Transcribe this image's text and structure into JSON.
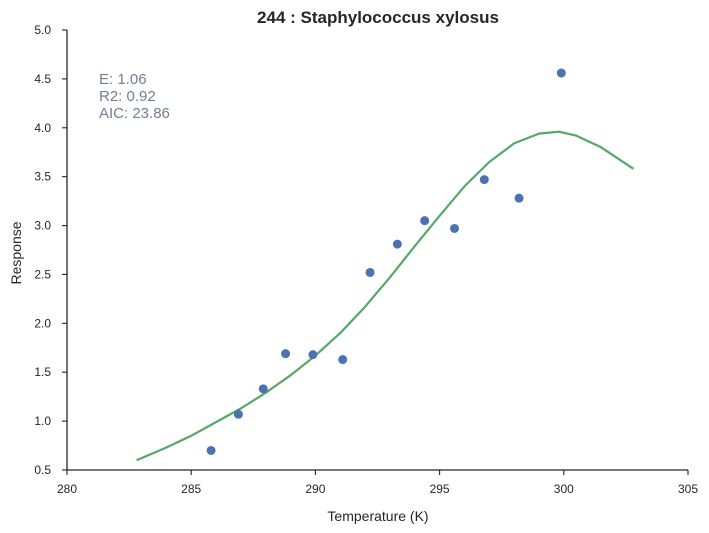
{
  "chart_data": {
    "type": "scatter",
    "title": "244 : Staphylococcus xylosus",
    "xlabel": "Temperature (K)",
    "ylabel": "Response",
    "xlim": [
      280,
      305
    ],
    "ylim": [
      0.5,
      5.0
    ],
    "xticks": [
      280,
      285,
      290,
      295,
      300,
      305
    ],
    "yticks": [
      0.5,
      1.0,
      1.5,
      2.0,
      2.5,
      3.0,
      3.5,
      4.0,
      4.5,
      5.0
    ],
    "xtick_labels": [
      "280",
      "285",
      "290",
      "295",
      "300",
      "305"
    ],
    "ytick_labels": [
      "0.5",
      "1.0",
      "1.5",
      "2.0",
      "2.5",
      "3.0",
      "3.5",
      "4.0",
      "4.5",
      "5.0"
    ],
    "grid": false,
    "series": [
      {
        "kind": "scatter",
        "color": "#4c72b0",
        "x": [
          285.8,
          286.9,
          287.9,
          288.8,
          289.9,
          291.1,
          292.2,
          293.3,
          294.4,
          295.6,
          296.8,
          298.2,
          299.9
        ],
        "y": [
          0.7,
          1.07,
          1.33,
          1.69,
          1.68,
          1.63,
          2.52,
          2.81,
          3.05,
          2.97,
          3.47,
          3.28,
          4.56
        ]
      },
      {
        "kind": "line",
        "color": "#55a868",
        "x": [
          282.8,
          284.0,
          285.0,
          286.0,
          287.0,
          288.0,
          289.0,
          290.0,
          291.0,
          292.0,
          293.0,
          294.0,
          295.0,
          296.0,
          297.0,
          298.0,
          299.0,
          299.8,
          300.5,
          301.5,
          302.8
        ],
        "y": [
          0.6,
          0.73,
          0.85,
          0.99,
          1.13,
          1.29,
          1.47,
          1.67,
          1.9,
          2.17,
          2.47,
          2.79,
          3.1,
          3.4,
          3.65,
          3.84,
          3.94,
          3.96,
          3.92,
          3.8,
          3.58
        ]
      }
    ],
    "annotations": [
      "E:  1.06",
      "R2:  0.92",
      "AIC: 23.86"
    ]
  }
}
